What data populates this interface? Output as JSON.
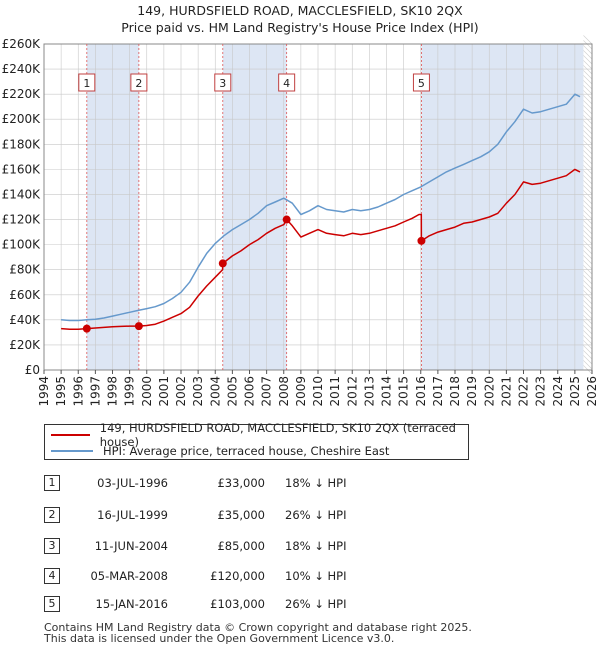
{
  "header": {
    "title_line1": "149, HURDSFIELD ROAD, MACCLESFIELD, SK10 2QX",
    "title_line2": "Price paid vs. HM Land Registry's House Price Index (HPI)"
  },
  "colors": {
    "property": "#cc0000",
    "hpi": "#6699cc",
    "shade": "#dde6f4",
    "grid": "#c8c8c8",
    "marker_line": "#dd5555"
  },
  "chart_data": {
    "type": "line",
    "title": "Price paid vs. HM Land Registry's House Price Index (HPI)",
    "xlabel": "",
    "ylabel": "",
    "xlim": [
      1994,
      2026
    ],
    "ylim": [
      0,
      260000
    ],
    "x_ticks": [
      1994,
      1995,
      1996,
      1997,
      1998,
      1999,
      2000,
      2001,
      2002,
      2003,
      2004,
      2005,
      2006,
      2007,
      2008,
      2009,
      2010,
      2011,
      2012,
      2013,
      2014,
      2015,
      2016,
      2017,
      2018,
      2019,
      2020,
      2021,
      2022,
      2023,
      2024,
      2025,
      2026
    ],
    "y_ticks": [
      0,
      20000,
      40000,
      60000,
      80000,
      100000,
      120000,
      140000,
      160000,
      180000,
      200000,
      220000,
      240000,
      260000
    ],
    "y_tick_labels": [
      "£0",
      "£20K",
      "£40K",
      "£60K",
      "£80K",
      "£100K",
      "£120K",
      "£140K",
      "£160K",
      "£180K",
      "£200K",
      "£220K",
      "£240K",
      "£260K"
    ],
    "shaded_ranges": [
      [
        1996.5,
        1999.54
      ],
      [
        2004.44,
        2008.17
      ],
      [
        2016.04,
        2025.5
      ]
    ],
    "data_range": [
      1995,
      2025.5
    ],
    "series": [
      {
        "name": "149, HURDSFIELD ROAD, MACCLESFIELD, SK10 2QX (terraced house)",
        "color": "#cc0000",
        "x": [
          1995,
          1995.5,
          1996,
          1996.5,
          1997,
          1997.5,
          1998,
          1998.5,
          1999,
          1999.54,
          2000,
          2000.5,
          2001,
          2001.5,
          2002,
          2002.5,
          2003,
          2003.5,
          2004,
          2004.43,
          2004.44,
          2005,
          2005.5,
          2006,
          2006.5,
          2007,
          2007.5,
          2008,
          2008.17,
          2008.5,
          2009,
          2009.5,
          2010,
          2010.5,
          2011,
          2011.5,
          2012,
          2012.5,
          2013,
          2013.5,
          2014,
          2014.5,
          2015,
          2015.5,
          2015.9,
          2016.03,
          2016.04,
          2016.5,
          2017,
          2017.5,
          2018,
          2018.5,
          2019,
          2019.5,
          2020,
          2020.5,
          2021,
          2021.5,
          2022,
          2022.5,
          2023,
          2023.5,
          2024,
          2024.5,
          2025,
          2025.3
        ],
        "values": [
          33000,
          32500,
          32500,
          33000,
          33500,
          34000,
          34500,
          34800,
          35000,
          35000,
          35500,
          36500,
          39000,
          42000,
          45000,
          50000,
          59000,
          67000,
          74000,
          80000,
          85000,
          91000,
          95000,
          100000,
          104000,
          109000,
          113000,
          116000,
          120000,
          115000,
          106000,
          109000,
          112000,
          109000,
          108000,
          107000,
          109000,
          108000,
          109000,
          111000,
          113000,
          115000,
          118000,
          121000,
          124000,
          124000,
          103000,
          107000,
          110000,
          112000,
          114000,
          117000,
          118000,
          120000,
          122000,
          125000,
          133000,
          140000,
          150000,
          148000,
          149000,
          151000,
          153000,
          155000,
          160000,
          158000
        ]
      },
      {
        "name": "HPI: Average price, terraced house, Cheshire East",
        "color": "#6699cc",
        "x": [
          1995,
          1995.5,
          1996,
          1996.5,
          1997,
          1997.5,
          1998,
          1998.5,
          1999,
          1999.5,
          2000,
          2000.5,
          2001,
          2001.5,
          2002,
          2002.5,
          2003,
          2003.5,
          2004,
          2004.5,
          2005,
          2005.5,
          2006,
          2006.5,
          2007,
          2007.5,
          2008,
          2008.5,
          2009,
          2009.5,
          2010,
          2010.5,
          2011,
          2011.5,
          2012,
          2012.5,
          2013,
          2013.5,
          2014,
          2014.5,
          2015,
          2015.5,
          2016,
          2016.5,
          2017,
          2017.5,
          2018,
          2018.5,
          2019,
          2019.5,
          2020,
          2020.5,
          2021,
          2021.5,
          2022,
          2022.5,
          2023,
          2023.5,
          2024,
          2024.5,
          2025,
          2025.3
        ],
        "values": [
          40000,
          39500,
          39500,
          40000,
          40500,
          41500,
          43000,
          44500,
          46000,
          47500,
          49000,
          50500,
          53000,
          57000,
          62000,
          70000,
          82000,
          93000,
          101000,
          107000,
          112000,
          116000,
          120000,
          125000,
          131000,
          134000,
          137000,
          133000,
          124000,
          127000,
          131000,
          128000,
          127000,
          126000,
          128000,
          127000,
          128000,
          130000,
          133000,
          136000,
          140000,
          143000,
          146000,
          150000,
          154000,
          158000,
          161000,
          164000,
          167000,
          170000,
          174000,
          180000,
          190000,
          198000,
          208000,
          205000,
          206000,
          208000,
          210000,
          212000,
          220000,
          218000
        ]
      }
    ],
    "sales": [
      {
        "label": "1",
        "x": 1996.5,
        "value": 33000
      },
      {
        "label": "2",
        "x": 1999.54,
        "value": 35000
      },
      {
        "label": "3",
        "x": 2004.44,
        "value": 85000
      },
      {
        "label": "4",
        "x": 2008.17,
        "value": 120000
      },
      {
        "label": "5",
        "x": 2016.04,
        "value": 103000
      }
    ]
  },
  "legend": {
    "property_label": "149, HURDSFIELD ROAD, MACCLESFIELD, SK10 2QX (terraced house)",
    "hpi_label": "HPI: Average price, terraced house, Cheshire East"
  },
  "transactions": [
    {
      "num": "1",
      "date": "03-JUL-1996",
      "price": "£33,000",
      "hpi": "18% ↓ HPI"
    },
    {
      "num": "2",
      "date": "16-JUL-1999",
      "price": "£35,000",
      "hpi": "26% ↓ HPI"
    },
    {
      "num": "3",
      "date": "11-JUN-2004",
      "price": "£85,000",
      "hpi": "18% ↓ HPI"
    },
    {
      "num": "4",
      "date": "05-MAR-2008",
      "price": "£120,000",
      "hpi": "10% ↓ HPI"
    },
    {
      "num": "5",
      "date": "15-JAN-2016",
      "price": "£103,000",
      "hpi": "26% ↓ HPI"
    }
  ],
  "footer": {
    "line1": "Contains HM Land Registry data © Crown copyright and database right 2025.",
    "line2": "This data is licensed under the Open Government Licence v3.0."
  }
}
